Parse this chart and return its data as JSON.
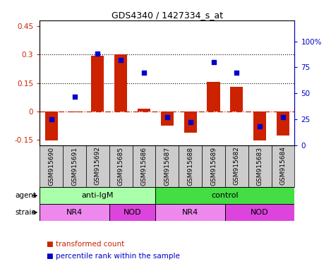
{
  "title": "GDS4340 / 1427334_s_at",
  "samples": [
    "GSM915690",
    "GSM915691",
    "GSM915692",
    "GSM915685",
    "GSM915686",
    "GSM915687",
    "GSM915688",
    "GSM915689",
    "GSM915682",
    "GSM915683",
    "GSM915684"
  ],
  "bar_values": [
    -0.155,
    -0.005,
    0.295,
    0.3,
    0.015,
    -0.075,
    -0.115,
    0.155,
    0.13,
    -0.155,
    -0.13
  ],
  "dot_values": [
    0.25,
    0.47,
    0.88,
    0.82,
    0.7,
    0.27,
    0.22,
    0.8,
    0.7,
    0.18,
    0.27
  ],
  "bar_color": "#CC2200",
  "dot_color": "#0000CC",
  "ylim_left": [
    -0.18,
    0.48
  ],
  "ylim_right": [
    0.0,
    1.2
  ],
  "yticks_left": [
    -0.15,
    0.0,
    0.15,
    0.3,
    0.45
  ],
  "yticks_left_labels": [
    "-0.15",
    "0",
    "0.15",
    "0.3",
    "0.45"
  ],
  "yticks_right_vals": [
    0.0,
    0.25,
    0.5,
    0.75,
    1.0
  ],
  "yticks_right_labels": [
    "0",
    "25",
    "50",
    "75",
    "100%"
  ],
  "hlines": [
    0.3,
    0.15
  ],
  "zero_line": 0.0,
  "agent_groups": [
    {
      "label": "anti-IgM",
      "start": 0,
      "end": 5,
      "color": "#AAFFAA"
    },
    {
      "label": "control",
      "start": 5,
      "end": 11,
      "color": "#44DD44"
    }
  ],
  "strain_groups": [
    {
      "label": "NR4",
      "start": 0,
      "end": 3,
      "color": "#EE88EE"
    },
    {
      "label": "NOD",
      "start": 3,
      "end": 5,
      "color": "#DD44DD"
    },
    {
      "label": "NR4",
      "start": 5,
      "end": 8,
      "color": "#EE88EE"
    },
    {
      "label": "NOD",
      "start": 8,
      "end": 11,
      "color": "#DD44DD"
    }
  ],
  "legend_items": [
    {
      "label": "transformed count",
      "color": "#CC2200"
    },
    {
      "label": "percentile rank within the sample",
      "color": "#0000CC"
    }
  ],
  "background_color": "#FFFFFF",
  "label_bg": "#CCCCCC",
  "bar_width": 0.55
}
